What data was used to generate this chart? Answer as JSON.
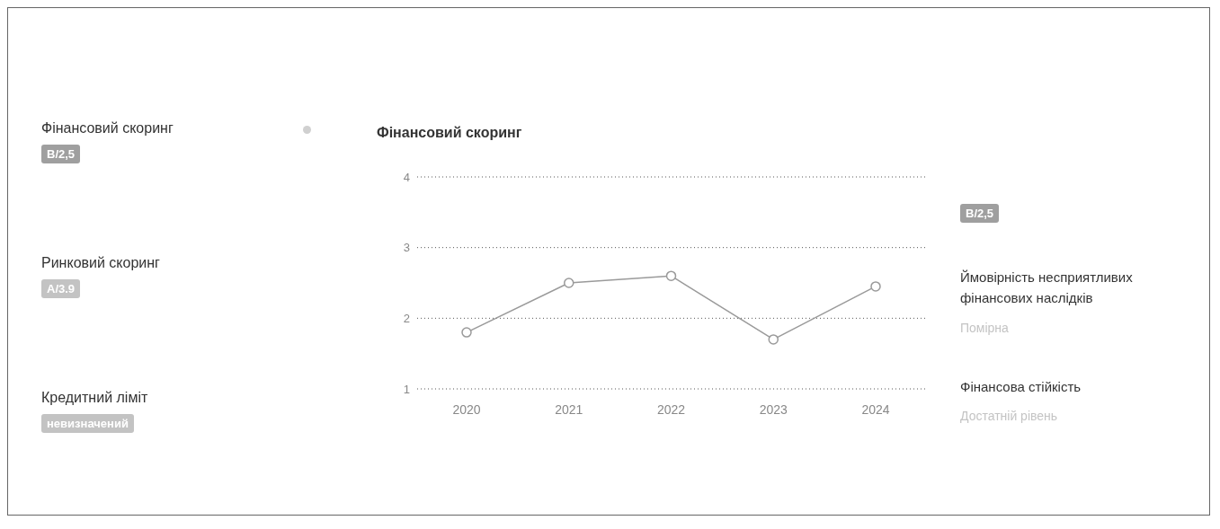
{
  "chart_data": [
    {
      "type": "other",
      "annotations": [
        "Фінансовий скоринг",
        "B/2,5",
        "Ринковий скоринг",
        "A/3.9",
        "Кредитний ліміт",
        "невизначений"
      ]
    },
    {
      "type": "line",
      "title": "Фінансовий скоринг",
      "categories": [
        "2020",
        "2021",
        "2022",
        "2023",
        "2024"
      ],
      "series": [
        {
          "color": "#9a9a9a",
          "values": [
            1.8,
            2.5,
            2.6,
            1.7,
            2.45
          ]
        }
      ],
      "ylim": [
        1,
        4
      ],
      "yticks": [
        1,
        2,
        3,
        4
      ],
      "grid": "y",
      "legend": false,
      "marker": "circle",
      "line_style": "solid"
    },
    {
      "type": "other",
      "annotations": [
        "B/2,5",
        "Ймовірність несприятливих фінансових наслідків",
        "Помірна",
        "Фінансова стійкість",
        "Достатній рівень"
      ]
    }
  ]
}
